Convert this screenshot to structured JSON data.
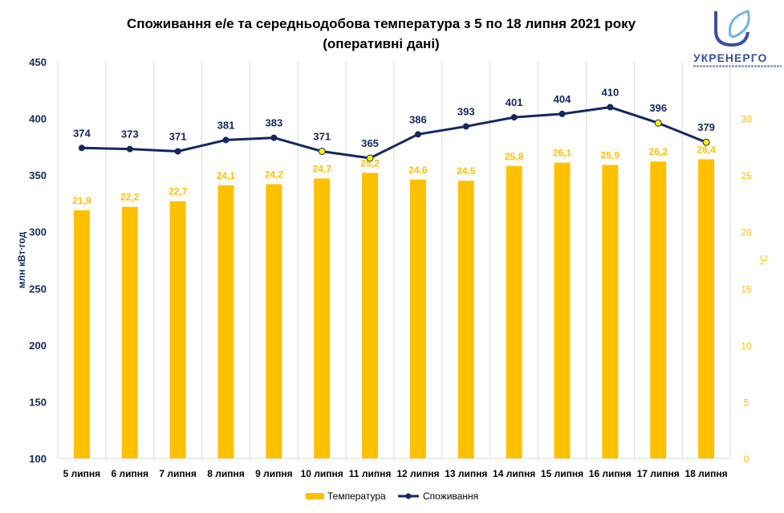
{
  "title_line1": "Споживання е/е та середньодобова температура з 5 по 18 липня 2021 року",
  "title_line2": "(оперативні дані)",
  "logo": {
    "text": "УКРЕНЕРГО"
  },
  "colors": {
    "bar": "#FFC000",
    "line": "#14275E",
    "marker_yellow": "#FFF200",
    "grid": "#D9D9D9",
    "right_axis": "#FFC000"
  },
  "chart_data": {
    "type": "bar+line",
    "categories": [
      "5 липня",
      "6 липня",
      "7 липня",
      "8 липня",
      "9 липня",
      "10 липня",
      "11 липня",
      "12 липня",
      "13 липня",
      "14 липня",
      "15 липня",
      "16 липня",
      "17 липня",
      "18 липня"
    ],
    "series": [
      {
        "name": "Температура",
        "type": "bar",
        "axis": "right",
        "values": [
          21.9,
          22.2,
          22.7,
          24.1,
          24.2,
          24.7,
          25.2,
          24.6,
          24.5,
          25.8,
          26.1,
          25.9,
          26.2,
          26.4
        ],
        "labels": [
          "21,9",
          "22,2",
          "22,7",
          "24,1",
          "24,2",
          "24,7",
          "25,2",
          "24,6",
          "24,5",
          "25,8",
          "26,1",
          "25,9",
          "26,2",
          "26,4"
        ]
      },
      {
        "name": "Споживання",
        "type": "line",
        "axis": "left",
        "values": [
          374,
          373,
          371,
          381,
          383,
          371,
          365,
          386,
          393,
          401,
          404,
          410,
          396,
          379
        ],
        "highlighted": [
          false,
          false,
          false,
          false,
          false,
          true,
          true,
          false,
          false,
          false,
          false,
          false,
          true,
          true
        ]
      }
    ],
    "left_axis": {
      "label": "млн кВт∙год",
      "min": 100,
      "max": 450,
      "ticks": [
        "100",
        "150",
        "200",
        "250",
        "300",
        "350",
        "400",
        "450"
      ]
    },
    "right_axis": {
      "label": "°C",
      "min": 0,
      "max": 35,
      "ticks": [
        "0",
        "5",
        "10",
        "15",
        "20",
        "25",
        "30"
      ]
    },
    "grid": "vertical",
    "legend_position": "bottom"
  }
}
